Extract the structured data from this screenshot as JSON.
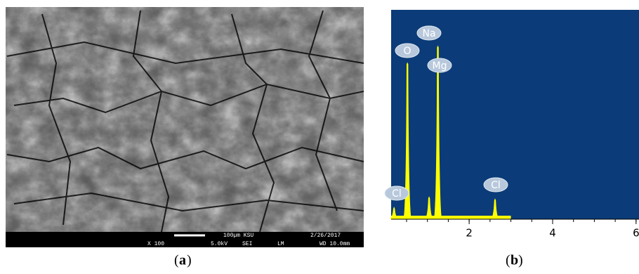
{
  "panel_a": {
    "caption_letter": "a",
    "scale_label": "100µm KSU",
    "date": "2/26/2017",
    "magnification": "X 100",
    "voltage": "5.0kV",
    "detector": "SEI",
    "mode": "LM",
    "working_distance": "WD 10.0mm"
  },
  "panel_b": {
    "caption_letter": "b",
    "xlim": [
      0.13,
      6.07
    ],
    "ylim": [
      0,
      100
    ],
    "xticks": [
      2,
      4,
      6
    ],
    "color": "#ffff00",
    "background": "#0b3b78",
    "peaks": [
      {
        "label": "Cl",
        "energy": 0.2,
        "height": 6
      },
      {
        "label": "O",
        "energy": 0.52,
        "height": 75
      },
      {
        "label": "Na",
        "energy": 1.04,
        "height": 11
      },
      {
        "label": "Mg",
        "energy": 1.25,
        "height": 83
      },
      {
        "label": "Cl",
        "energy": 2.62,
        "height": 10
      }
    ]
  }
}
